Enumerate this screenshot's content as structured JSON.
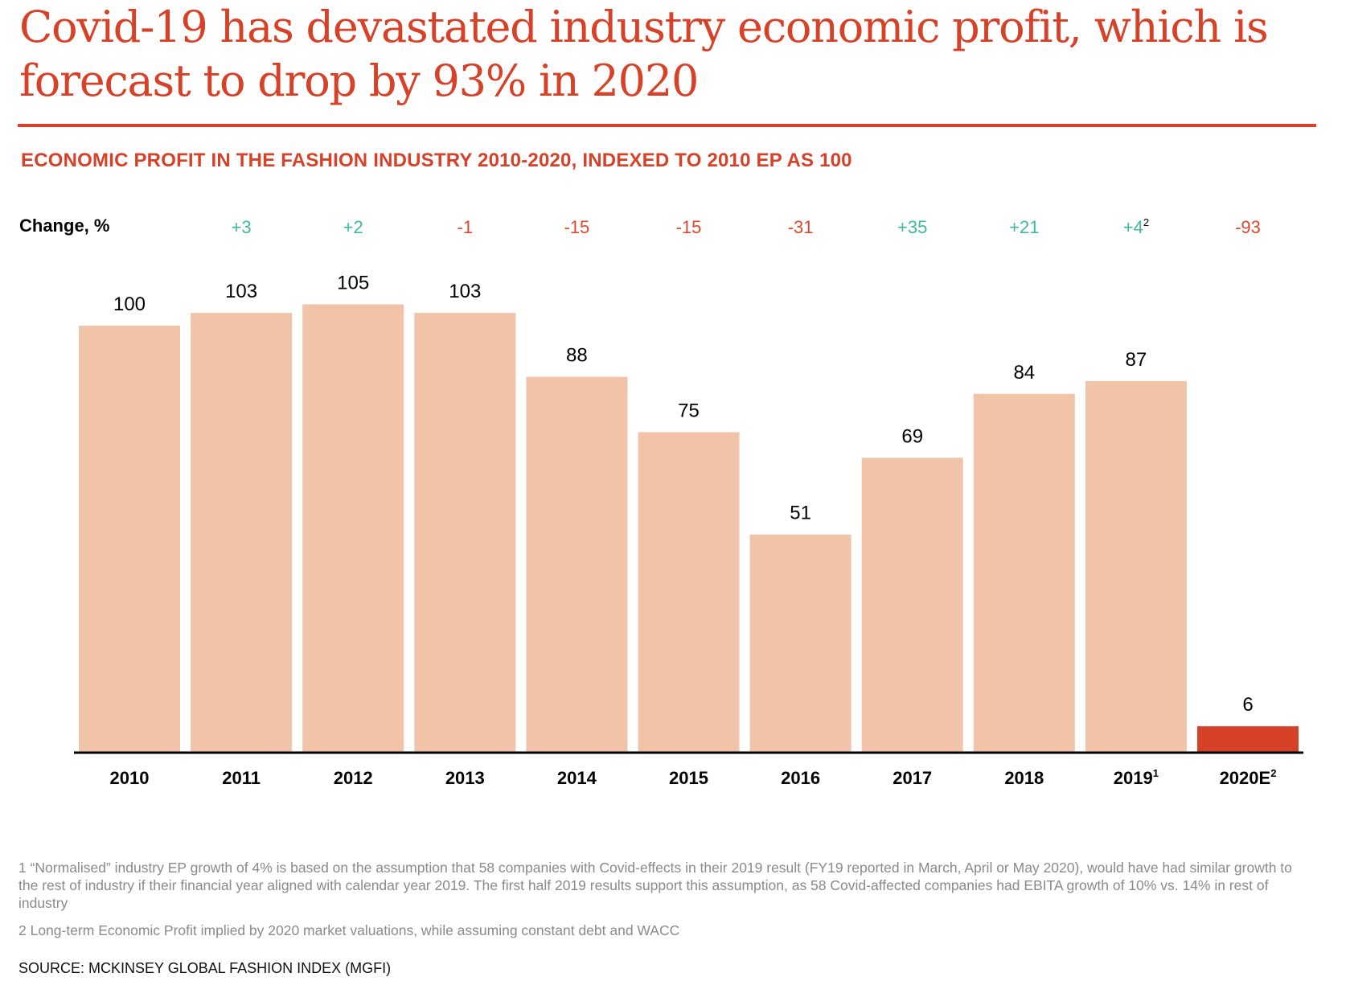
{
  "title": "Covid-19 has devastated industry economic profit, which is forecast to drop by 93% in 2020",
  "subtitle": "ECONOMIC PROFIT IN THE FASHION INDUSTRY 2010-2020, INDEXED TO 2010 EP AS 100",
  "change_label": "Change, %",
  "colors": {
    "accent": "#d64127",
    "bar": "#f1c3a9",
    "highlight_bar": "#d64127",
    "positive": "#3fb89b",
    "negative": "#e0452e",
    "text": "#000000",
    "footnote": "#8a8a8a"
  },
  "chart_data": {
    "type": "bar",
    "title": "ECONOMIC PROFIT IN THE FASHION INDUSTRY 2010-2020, INDEXED TO 2010 EP AS 100",
    "xlabel": "",
    "ylabel": "",
    "categories": [
      "2010",
      "2011",
      "2012",
      "2013",
      "2014",
      "2015",
      "2016",
      "2017",
      "2018",
      "2019",
      "2020E"
    ],
    "category_superscripts": [
      "",
      "",
      "",
      "",
      "",
      "",
      "",
      "",
      "",
      "1",
      "2"
    ],
    "values": [
      100,
      103,
      105,
      103,
      88,
      75,
      51,
      69,
      84,
      87,
      6
    ],
    "highlighted": [
      false,
      false,
      false,
      false,
      false,
      false,
      false,
      false,
      false,
      false,
      true
    ],
    "change_pct": [
      "",
      "+3",
      "+2",
      "-1",
      "-15",
      "-15",
      "-31",
      "+35",
      "+21",
      "+4",
      "-93"
    ],
    "change_superscripts": [
      "",
      "",
      "",
      "",
      "",
      "",
      "",
      "",
      "",
      "2",
      ""
    ],
    "ylim": [
      0,
      105
    ],
    "grid": false,
    "legend": "none"
  },
  "footnotes": [
    "1 “Normalised” industry EP growth of 4% is based on the assumption that 58 companies with Covid-effects in their 2019 result (FY19 reported in March, April or May 2020), would have had similar growth to the rest of industry if their financial year aligned with calendar year 2019. The first half 2019 results support this assumption, as 58 Covid-affected companies had EBITA growth of 10% vs. 14% in rest of industry",
    "2 Long-term Economic Profit implied by 2020 market valuations, while assuming constant debt and WACC"
  ],
  "source": "SOURCE: MCKINSEY GLOBAL FASHION INDEX (MGFI)"
}
